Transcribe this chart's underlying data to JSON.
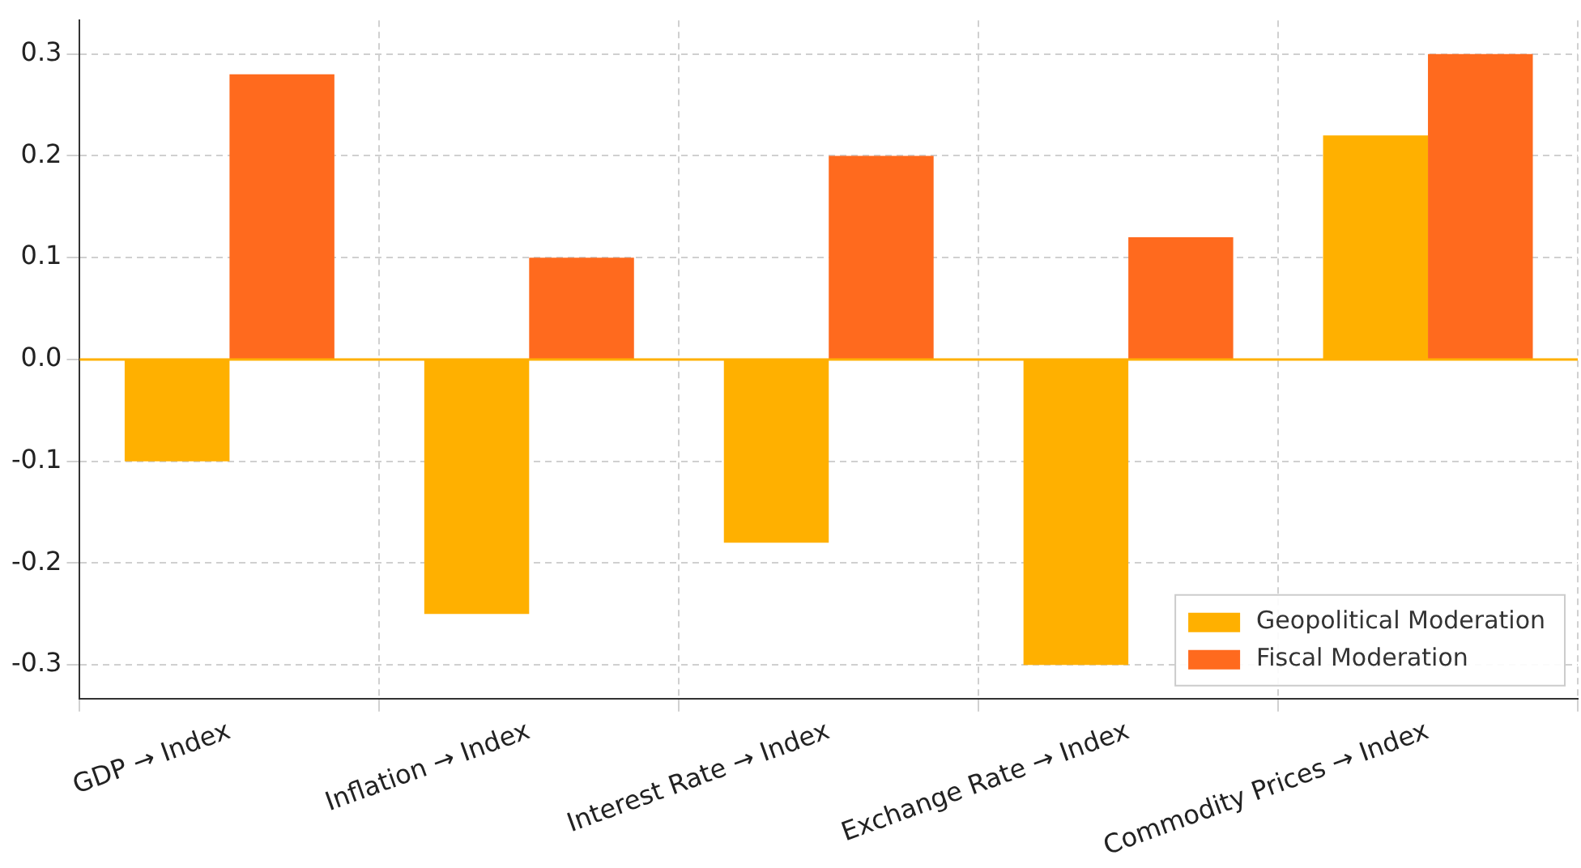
{
  "chart_data": {
    "type": "bar",
    "categories": [
      "GDP → Index",
      "Inflation → Index",
      "Interest Rate → Index",
      "Exchange Rate → Index",
      "Commodity Prices → Index"
    ],
    "series": [
      {
        "name": "Geopolitical Moderation",
        "color": "#ffb000",
        "values": [
          -0.1,
          -0.25,
          -0.18,
          -0.3,
          0.22
        ]
      },
      {
        "name": "Fiscal Moderation",
        "color": "#ff6a1e",
        "values": [
          0.28,
          0.1,
          0.2,
          0.12,
          0.3
        ]
      }
    ],
    "ylim": [
      -0.333,
      0.333
    ],
    "yticks": [
      -0.3,
      -0.2,
      -0.1,
      {
        "value": 0,
        "label": "0.0"
      },
      0.1,
      0.2,
      0.3
    ],
    "ref_lines": [
      {
        "axis": "y",
        "value": 0,
        "color": "#ffb000"
      }
    ],
    "grid": true,
    "legend": "bottom right"
  }
}
